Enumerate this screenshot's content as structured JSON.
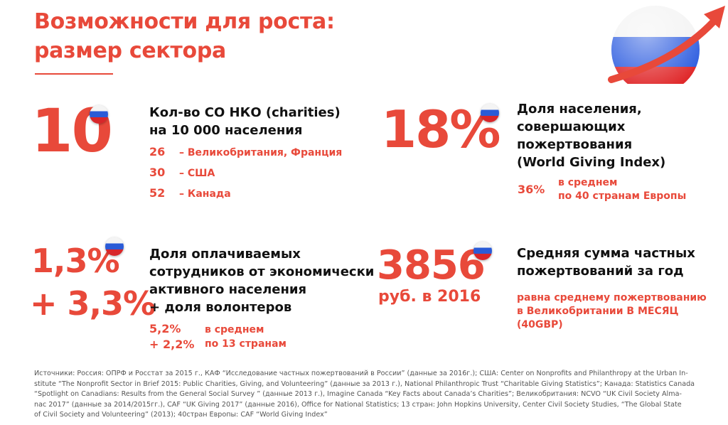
{
  "title": {
    "line1": "Возможности для роста:",
    "line2": "размер сектора"
  },
  "block1": {
    "big": "10",
    "heading_line1": "Кол-во СО НКО (charities)",
    "heading_line2": "на 10 000 населения",
    "rows": [
      {
        "num": "26",
        "label": "– Великобритания, Франция"
      },
      {
        "num": "30",
        "label": "– США"
      },
      {
        "num": "52",
        "label": "– Канада"
      }
    ]
  },
  "block2": {
    "big": "18%",
    "heading_line1": "Доля населения,",
    "heading_line2": "совершающих",
    "heading_line3": "пожертвования",
    "heading_line4": "(World Giving Index)",
    "compare_value": "36%",
    "compare_line1": "в среднем",
    "compare_line2": "по 40 странам Европы"
  },
  "block3": {
    "big1": "1,3%",
    "big2": "+ 3,3%",
    "heading_line1": "Доля  оплачиваемых",
    "heading_line2": "сотрудников от экономически",
    "heading_line3": "активного населения",
    "heading_line4": "+ доля волонтеров",
    "compare_value1": "5,2%",
    "compare_value2": "+ 2,2%",
    "compare_line1": "в среднем",
    "compare_line2": "по 13 странам"
  },
  "block4": {
    "big": "3856",
    "sub": "руб. в 2016",
    "heading_line1": "Средняя сумма частных",
    "heading_line2": "пожертвований за год",
    "note_line1": "равна среднему пожертвованию",
    "note_line2": "в Великобритании В МЕСЯЦ",
    "note_line3": "(40GBP)"
  },
  "sources": {
    "line1": "Источники: Россия: ОПРФ и Росстат за 2015 г., КАФ “Исследование частных пожертвований в России” (данные за 2016г.); США: Center on Nonprofits and Philanthropy at the Urban In-",
    "line2": "stitute “The Nonprofit Sector in Brief 2015: Public Charities, Giving, and Volunteering”  (данные за 2013 г.), National Philanthropic Trust “Charitable Giving Statistics”;  Канада: Statistics Canada",
    "line3": "“Spotlight on Canadians: Results from the General Social Survey ” (данные 2013 г.), Imagine Canada “Key Facts about Canada’s Charities”;  Великобритания: NCVO “UK Civil Society Alma-",
    "line4": "nac 2017” (данные за 2014/2015гг.), CAF “UK Giving 2017” (данные 2016), Office for National Statistics; 13 стран: John Hopkins University, Center Civil Society Studies, “The Global State",
    "line5": "of Civil Society and Volunteering” (2013);  40стран Европы: CAF “World Giving Index”"
  },
  "colors": {
    "accent": "#e8493a",
    "flag_white": "#f4f4f4",
    "flag_blue": "#2a5bd7",
    "flag_red": "#d8262a"
  },
  "icons": {
    "flag": "russia-flag-icon",
    "growth": "growth-arrow-icon"
  }
}
